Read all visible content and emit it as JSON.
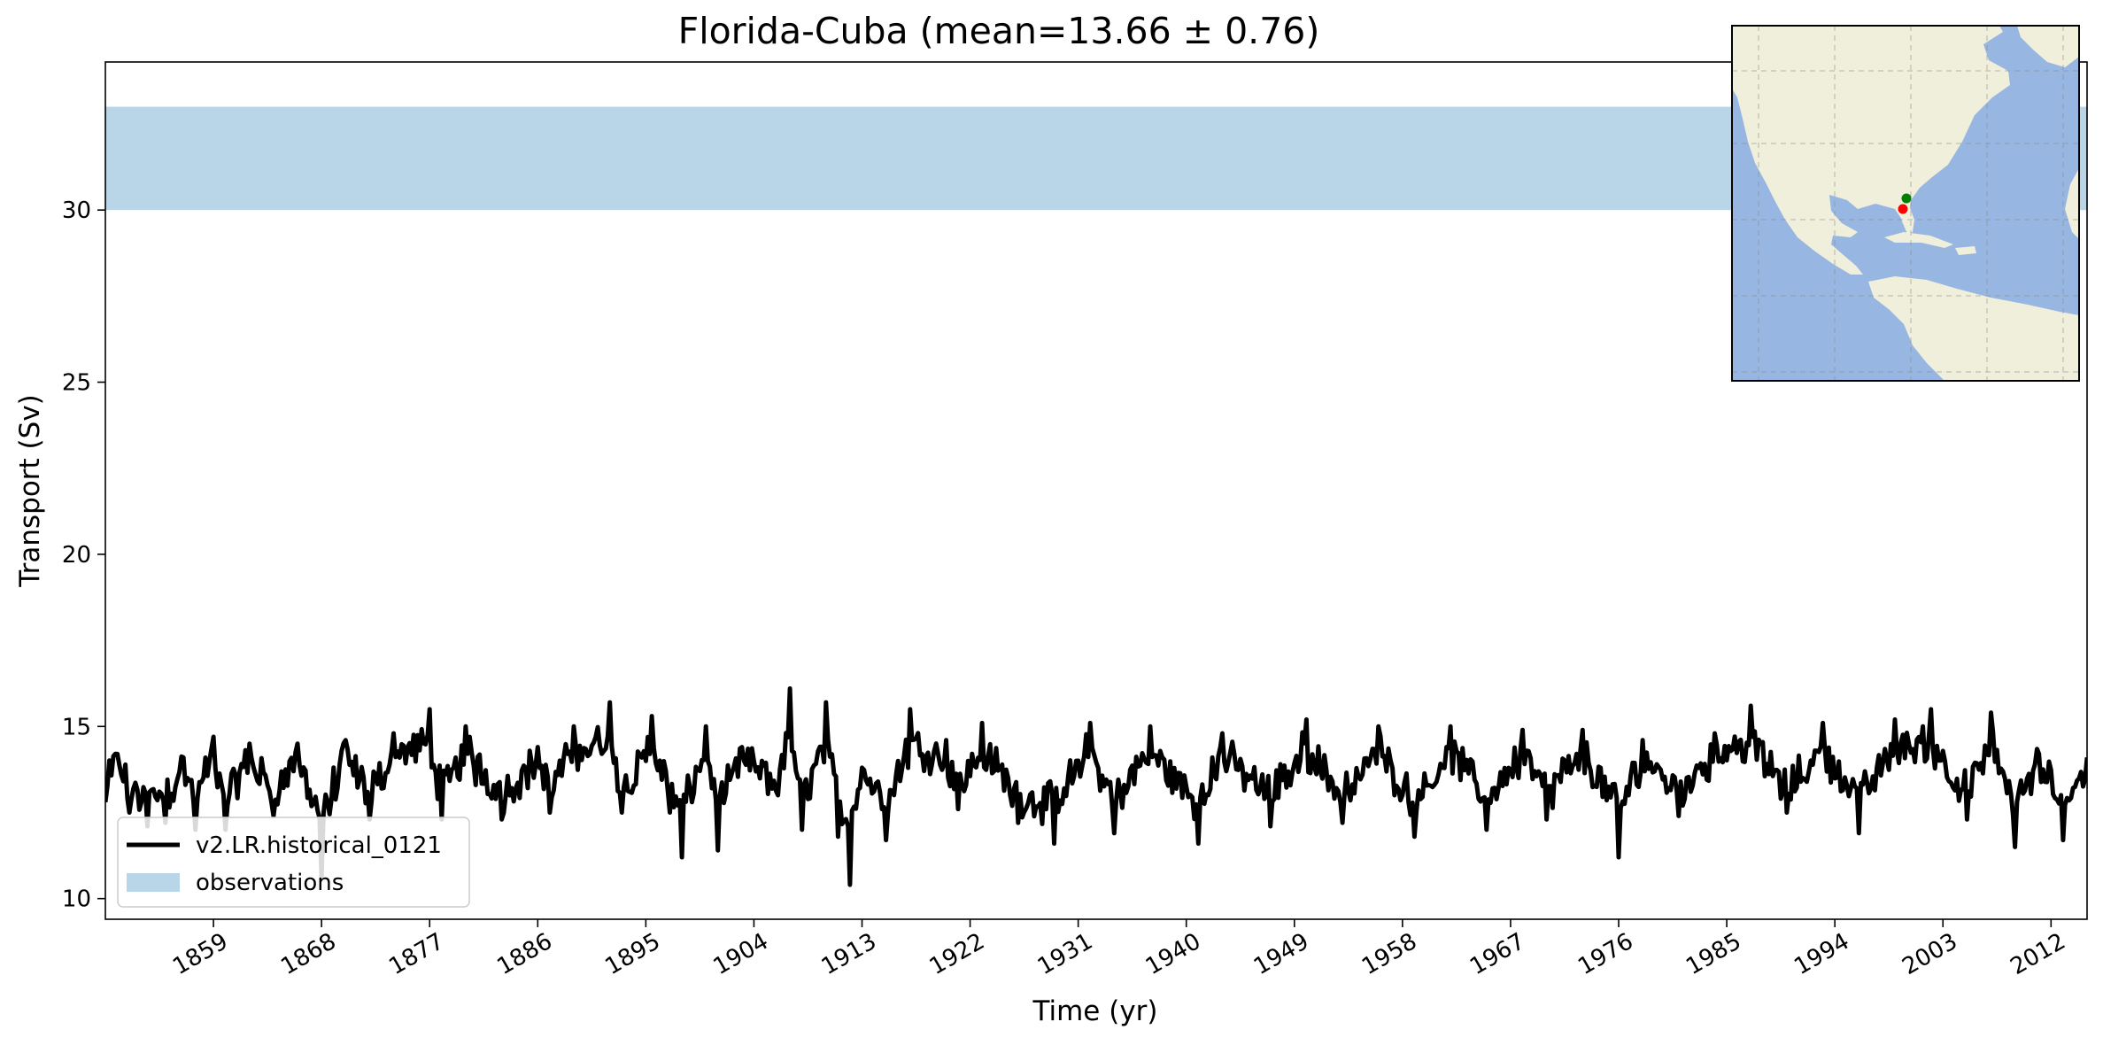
{
  "chart_data": {
    "type": "line",
    "title": "Florida-Cuba (mean=13.66 ± 0.76)",
    "xlabel": "Time (yr)",
    "ylabel": "Transport (Sv)",
    "xlim": [
      1850,
      2015
    ],
    "ylim": [
      9.4,
      34.3
    ],
    "xticks": [
      1859,
      1868,
      1877,
      1886,
      1895,
      1904,
      1913,
      1922,
      1931,
      1940,
      1949,
      1958,
      1967,
      1976,
      1985,
      1994,
      2003,
      2012
    ],
    "yticks": [
      10,
      15,
      20,
      25,
      30
    ],
    "grid": false,
    "legend_position": "lower left",
    "observation_band": {
      "label": "observations",
      "ymin": 30,
      "ymax": 33,
      "color": "#b9d5e8"
    },
    "series": [
      {
        "name": "v2.LR.historical_0121",
        "color": "#000000",
        "mean": 13.66,
        "std": 0.76,
        "x_start": 1850,
        "x_end": 2015,
        "key_points": [
          {
            "x": 1850.0,
            "y": 12.8
          },
          {
            "x": 1851.0,
            "y": 14.2
          },
          {
            "x": 1852.0,
            "y": 12.5
          },
          {
            "x": 1853.5,
            "y": 12.1
          },
          {
            "x": 1855.0,
            "y": 12.2
          },
          {
            "x": 1856.5,
            "y": 14.1
          },
          {
            "x": 1857.5,
            "y": 12.0
          },
          {
            "x": 1859.0,
            "y": 14.7
          },
          {
            "x": 1860.0,
            "y": 12.0
          },
          {
            "x": 1862.0,
            "y": 14.5
          },
          {
            "x": 1864.0,
            "y": 12.4
          },
          {
            "x": 1866.0,
            "y": 14.5
          },
          {
            "x": 1868.0,
            "y": 10.6
          },
          {
            "x": 1870.0,
            "y": 14.6
          },
          {
            "x": 1872.0,
            "y": 12.3
          },
          {
            "x": 1874.0,
            "y": 14.8
          },
          {
            "x": 1877.0,
            "y": 15.5
          },
          {
            "x": 1878.0,
            "y": 12.3
          },
          {
            "x": 1880.0,
            "y": 15.0
          },
          {
            "x": 1883.0,
            "y": 12.3
          },
          {
            "x": 1886.0,
            "y": 14.4
          },
          {
            "x": 1887.0,
            "y": 12.5
          },
          {
            "x": 1889.0,
            "y": 15.0
          },
          {
            "x": 1892.0,
            "y": 15.7
          },
          {
            "x": 1893.0,
            "y": 12.5
          },
          {
            "x": 1895.5,
            "y": 15.3
          },
          {
            "x": 1897.0,
            "y": 12.5
          },
          {
            "x": 1898.0,
            "y": 11.2
          },
          {
            "x": 1900.0,
            "y": 15.0
          },
          {
            "x": 1901.0,
            "y": 11.4
          },
          {
            "x": 1903.0,
            "y": 14.4
          },
          {
            "x": 1906.0,
            "y": 13.0
          },
          {
            "x": 1907.0,
            "y": 16.1
          },
          {
            "x": 1908.0,
            "y": 12.0
          },
          {
            "x": 1910.0,
            "y": 15.7
          },
          {
            "x": 1911.0,
            "y": 11.8
          },
          {
            "x": 1912.0,
            "y": 10.4
          },
          {
            "x": 1913.0,
            "y": 13.8
          },
          {
            "x": 1915.0,
            "y": 11.7
          },
          {
            "x": 1917.0,
            "y": 15.5
          },
          {
            "x": 1920.0,
            "y": 14.6
          },
          {
            "x": 1921.0,
            "y": 12.6
          },
          {
            "x": 1923.0,
            "y": 15.1
          },
          {
            "x": 1926.0,
            "y": 12.2
          },
          {
            "x": 1929.0,
            "y": 11.6
          },
          {
            "x": 1932.0,
            "y": 15.1
          },
          {
            "x": 1934.0,
            "y": 11.9
          },
          {
            "x": 1937.0,
            "y": 15.0
          },
          {
            "x": 1941.0,
            "y": 11.6
          },
          {
            "x": 1943.0,
            "y": 14.8
          },
          {
            "x": 1947.0,
            "y": 12.1
          },
          {
            "x": 1950.0,
            "y": 15.2
          },
          {
            "x": 1953.0,
            "y": 12.2
          },
          {
            "x": 1956.0,
            "y": 15.0
          },
          {
            "x": 1959.0,
            "y": 11.8
          },
          {
            "x": 1962.0,
            "y": 15.0
          },
          {
            "x": 1965.0,
            "y": 12.0
          },
          {
            "x": 1968.0,
            "y": 14.9
          },
          {
            "x": 1970.0,
            "y": 12.3
          },
          {
            "x": 1973.0,
            "y": 14.9
          },
          {
            "x": 1976.0,
            "y": 11.2
          },
          {
            "x": 1978.0,
            "y": 14.6
          },
          {
            "x": 1981.0,
            "y": 12.4
          },
          {
            "x": 1984.0,
            "y": 14.8
          },
          {
            "x": 1987.0,
            "y": 15.6
          },
          {
            "x": 1990.0,
            "y": 12.5
          },
          {
            "x": 1993.0,
            "y": 15.1
          },
          {
            "x": 1996.0,
            "y": 11.9
          },
          {
            "x": 1999.0,
            "y": 15.2
          },
          {
            "x": 2002.0,
            "y": 15.5
          },
          {
            "x": 2005.0,
            "y": 12.3
          },
          {
            "x": 2007.0,
            "y": 15.4
          },
          {
            "x": 2009.0,
            "y": 11.5
          },
          {
            "x": 2011.0,
            "y": 14.2
          },
          {
            "x": 2013.0,
            "y": 11.7
          },
          {
            "x": 2015.0,
            "y": 14.1
          }
        ]
      }
    ],
    "inset_map": {
      "content": "regional map of the Americas / Caribbean",
      "markers": [
        {
          "color": "#008000",
          "lon": -80.0,
          "lat": 25.8
        },
        {
          "color": "#ff0000",
          "lon": -80.8,
          "lat": 23.1
        }
      ],
      "ocean_color": "#97b6e1",
      "land_color": "#efefdb"
    }
  }
}
